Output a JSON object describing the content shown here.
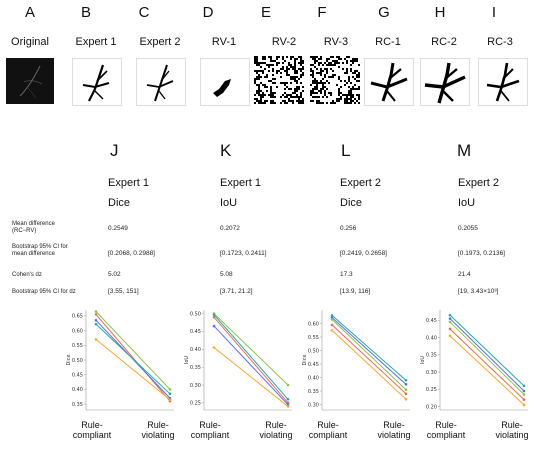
{
  "panels_top": [
    {
      "letter": "A",
      "title": "Original",
      "thumb": "original"
    },
    {
      "letter": "B",
      "title": "Expert 1",
      "thumb": "mask"
    },
    {
      "letter": "C",
      "title": "Expert 2",
      "thumb": "mask"
    },
    {
      "letter": "D",
      "title": "RV-1",
      "thumb": "blob"
    },
    {
      "letter": "E",
      "title": "RV-2",
      "thumb": "noise"
    },
    {
      "letter": "F",
      "title": "RV-3",
      "thumb": "noise"
    },
    {
      "letter": "G",
      "title": "RC-1",
      "thumb": "mask"
    },
    {
      "letter": "H",
      "title": "RC-2",
      "thumb": "mask"
    },
    {
      "letter": "I",
      "title": "RC-3",
      "thumb": "mask"
    }
  ],
  "columns": [
    {
      "letter": "J",
      "expert": "Expert 1",
      "metric": "Dice"
    },
    {
      "letter": "K",
      "expert": "Expert 1",
      "metric": "IoU"
    },
    {
      "letter": "L",
      "expert": "Expert 2",
      "metric": "Dice"
    },
    {
      "letter": "M",
      "expert": "Expert 2",
      "metric": "IoU"
    }
  ],
  "stats_rows": [
    {
      "label": [
        "Mean difference",
        "(RC−RV)"
      ],
      "values": [
        "0.2549",
        "0.2072",
        "0.256",
        "0.2055"
      ]
    },
    {
      "label": [
        "Bootstrap 95% CI for",
        "mean difference"
      ],
      "values": [
        "[0.2068, 0.2988]",
        "[0.1723, 0.2411]",
        "[0.2419, 0.2658]",
        "[0.1973, 0.2136]"
      ]
    },
    {
      "label": [
        "Cohen's dz"
      ],
      "values": [
        "5.02",
        "5.08",
        "17.3",
        "21.4"
      ]
    },
    {
      "label": [
        "Bootstrap 95% CI for dz"
      ],
      "values": [
        "[3.55, 151]",
        "[3.71, 21.2]",
        "[13.9, 116]",
        "[19, 3.43×10³]"
      ]
    }
  ],
  "chart_data": [
    {
      "type": "line",
      "ylabel": "Dice",
      "ylim": [
        0.33,
        0.67
      ],
      "yticks": [
        "0.35",
        "0.40",
        "0.45",
        "0.50",
        "0.55",
        "0.60",
        "0.65"
      ],
      "categories": [
        "Rule-compliant",
        "Rule-violating"
      ],
      "series": [
        {
          "color": "#8bc34a",
          "values": [
            0.665,
            0.4
          ]
        },
        {
          "color": "#e26d5a",
          "values": [
            0.655,
            0.36
          ]
        },
        {
          "color": "#5b6ee1",
          "values": [
            0.635,
            0.37
          ]
        },
        {
          "color": "#26a6a6",
          "values": [
            0.622,
            0.385
          ]
        },
        {
          "color": "#f2a93b",
          "values": [
            0.57,
            0.365
          ]
        }
      ]
    },
    {
      "type": "line",
      "ylabel": "IoU",
      "ylim": [
        0.23,
        0.51
      ],
      "yticks": [
        "0.25",
        "0.30",
        "0.35",
        "0.40",
        "0.45",
        "0.50"
      ],
      "categories": [
        "Rule-compliant",
        "Rule-violating"
      ],
      "series": [
        {
          "color": "#8bc34a",
          "values": [
            0.5,
            0.3
          ]
        },
        {
          "color": "#e26d5a",
          "values": [
            0.49,
            0.25
          ]
        },
        {
          "color": "#26a6a6",
          "values": [
            0.497,
            0.26
          ]
        },
        {
          "color": "#5b6ee1",
          "values": [
            0.465,
            0.245
          ]
        },
        {
          "color": "#f2a93b",
          "values": [
            0.405,
            0.24
          ]
        }
      ]
    },
    {
      "type": "line",
      "ylabel": "Dice",
      "ylim": [
        0.28,
        0.65
      ],
      "yticks": [
        "0.30",
        "0.35",
        "0.40",
        "0.45",
        "0.50",
        "0.55",
        "0.60"
      ],
      "categories": [
        "Rule-compliant",
        "Rule-violating"
      ],
      "series": [
        {
          "color": "#26a6a6",
          "values": [
            0.63,
            0.39
          ]
        },
        {
          "color": "#5b6ee1",
          "values": [
            0.622,
            0.375
          ]
        },
        {
          "color": "#8bc34a",
          "values": [
            0.615,
            0.355
          ]
        },
        {
          "color": "#e26d5a",
          "values": [
            0.595,
            0.34
          ]
        },
        {
          "color": "#f2a93b",
          "values": [
            0.575,
            0.32
          ]
        }
      ]
    },
    {
      "type": "line",
      "ylabel": "IoU",
      "ylim": [
        0.19,
        0.48
      ],
      "yticks": [
        "0.20",
        "0.25",
        "0.30",
        "0.35",
        "0.40",
        "0.45"
      ],
      "categories": [
        "Rule-compliant",
        "Rule-violating"
      ],
      "series": [
        {
          "color": "#26a6a6",
          "values": [
            0.465,
            0.26
          ]
        },
        {
          "color": "#5b6ee1",
          "values": [
            0.455,
            0.245
          ]
        },
        {
          "color": "#8bc34a",
          "values": [
            0.445,
            0.235
          ]
        },
        {
          "color": "#e26d5a",
          "values": [
            0.425,
            0.22
          ]
        },
        {
          "color": "#f2a93b",
          "values": [
            0.405,
            0.205
          ]
        }
      ]
    }
  ]
}
